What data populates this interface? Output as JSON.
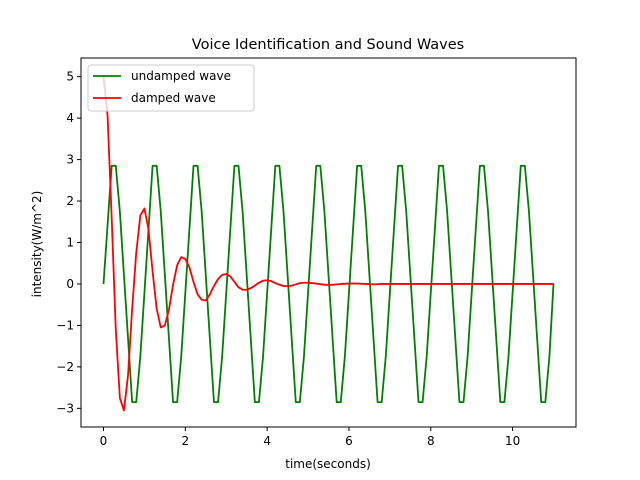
{
  "chart_data": {
    "type": "line",
    "title": "Voice Identification and Sound Waves",
    "xlabel": "time(seconds)",
    "ylabel": "intensity(W/m^2)",
    "xlim": [
      -0.55,
      11.55
    ],
    "ylim": [
      -3.45,
      5.45
    ],
    "xticks": [
      0,
      2,
      4,
      6,
      8,
      10
    ],
    "yticks": [
      -3,
      -2,
      -1,
      0,
      1,
      2,
      3,
      4,
      5
    ],
    "grid": false,
    "legend_position": "top-left",
    "series": [
      {
        "name": "undamped wave",
        "color": "#008000",
        "x": [
          0,
          0.2,
          0.3,
          0.4,
          0.7,
          0.8,
          0.9,
          1.2,
          1.3,
          1.4,
          1.7,
          1.8,
          1.9,
          2.2,
          2.3,
          2.4,
          2.7,
          2.8,
          2.9,
          3.2,
          3.3,
          3.4,
          3.7,
          3.8,
          3.9,
          4.2,
          4.3,
          4.4,
          4.7,
          4.8,
          4.9,
          5.2,
          5.3,
          5.4,
          5.7,
          5.8,
          5.9,
          6.2,
          6.3,
          6.4,
          6.7,
          6.8,
          6.9,
          7.2,
          7.3,
          7.4,
          7.7,
          7.8,
          7.9,
          8.2,
          8.3,
          8.4,
          8.7,
          8.8,
          8.9,
          9.2,
          9.3,
          9.4,
          9.7,
          9.8,
          9.9,
          10.2,
          10.3,
          10.4,
          10.7,
          10.8,
          10.9,
          11.0
        ],
        "y": [
          0,
          2.85,
          2.85,
          1.75,
          -2.85,
          -2.85,
          -1.75,
          2.85,
          2.85,
          1.75,
          -2.85,
          -2.85,
          -1.75,
          2.85,
          2.85,
          1.75,
          -2.85,
          -2.85,
          -1.75,
          2.85,
          2.85,
          1.75,
          -2.85,
          -2.85,
          -1.75,
          2.85,
          2.85,
          1.75,
          -2.85,
          -2.85,
          -1.75,
          2.85,
          2.85,
          1.75,
          -2.85,
          -2.85,
          -1.75,
          2.85,
          2.85,
          1.75,
          -2.85,
          -2.85,
          -1.75,
          2.85,
          2.85,
          1.75,
          -2.85,
          -2.85,
          -1.75,
          2.85,
          2.85,
          1.75,
          -2.85,
          -2.85,
          -1.75,
          2.85,
          2.85,
          1.75,
          -2.85,
          -2.85,
          -1.75,
          2.85,
          2.85,
          1.75,
          -2.85,
          -2.85,
          -1.75,
          0
        ]
      },
      {
        "name": "damped wave",
        "color": "#ff0000",
        "x": [
          0,
          0.1,
          0.2,
          0.3,
          0.4,
          0.5,
          0.6,
          0.7,
          0.8,
          0.9,
          1.0,
          1.1,
          1.2,
          1.3,
          1.4,
          1.5,
          1.6,
          1.7,
          1.8,
          1.9,
          2.0,
          2.1,
          2.2,
          2.3,
          2.4,
          2.5,
          2.6,
          2.7,
          2.8,
          2.9,
          3.0,
          3.1,
          3.2,
          3.3,
          3.4,
          3.5,
          3.6,
          3.7,
          3.8,
          3.9,
          4.0,
          4.1,
          4.2,
          4.3,
          4.4,
          4.5,
          4.6,
          4.7,
          4.8,
          4.9,
          5.0,
          5.2,
          5.4,
          5.6,
          5.8,
          6.0,
          6.2,
          6.4,
          6.6,
          6.8,
          7.0,
          7.5,
          8.0,
          8.5,
          9.0,
          9.5,
          10.0,
          10.5,
          11.0
        ],
        "y": [
          5.0,
          4.05,
          1.6,
          -1.1,
          -2.75,
          -3.05,
          -2.2,
          -0.6,
          0.75,
          1.65,
          1.82,
          1.32,
          0.3,
          -0.6,
          -1.05,
          -1.0,
          -0.62,
          -0.02,
          0.45,
          0.65,
          0.6,
          0.4,
          0.05,
          -0.25,
          -0.38,
          -0.4,
          -0.25,
          -0.05,
          0.12,
          0.22,
          0.24,
          0.18,
          0.05,
          -0.08,
          -0.14,
          -0.14,
          -0.1,
          -0.04,
          0.03,
          0.08,
          0.09,
          0.07,
          0.02,
          -0.02,
          -0.05,
          -0.05,
          -0.04,
          -0.01,
          0.02,
          0.03,
          0.03,
          0.01,
          -0.02,
          -0.02,
          0.0,
          0.01,
          0.01,
          0.0,
          -0.01,
          0.0,
          0.0,
          0.0,
          0.0,
          0.0,
          0.0,
          0.0,
          0.0,
          0.0,
          0.0
        ]
      }
    ]
  }
}
